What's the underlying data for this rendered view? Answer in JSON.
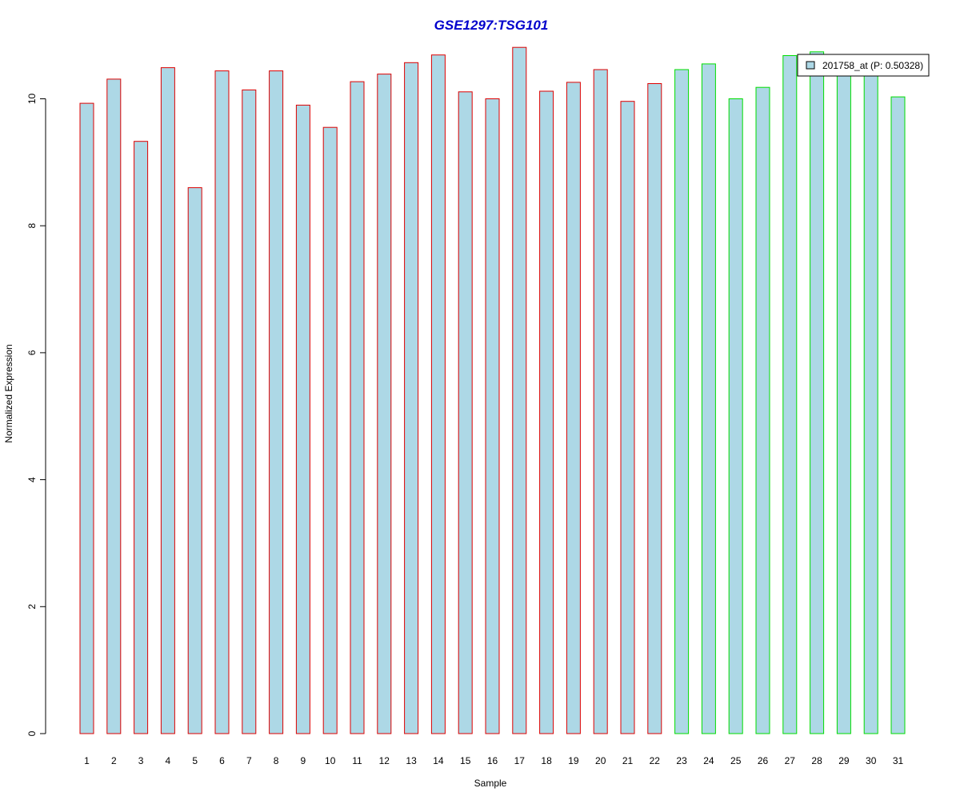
{
  "chart_data": {
    "type": "bar",
    "title": "GSE1297:TSG101",
    "xlabel": "Sample",
    "ylabel": "Normalized Expression",
    "categories": [
      "1",
      "2",
      "3",
      "4",
      "5",
      "6",
      "7",
      "8",
      "9",
      "10",
      "11",
      "12",
      "13",
      "14",
      "15",
      "16",
      "17",
      "18",
      "19",
      "20",
      "21",
      "22",
      "23",
      "24",
      "25",
      "26",
      "27",
      "28",
      "29",
      "30",
      "31"
    ],
    "series": [
      {
        "name": "201758_at (P: 0.50328)",
        "values": [
          9.93,
          10.31,
          9.33,
          10.49,
          8.6,
          10.44,
          10.14,
          10.44,
          9.9,
          9.55,
          10.27,
          10.39,
          10.57,
          10.69,
          10.11,
          10.0,
          10.81,
          10.12,
          10.26,
          10.46,
          9.96,
          10.24,
          10.46,
          10.55,
          10.0,
          10.18,
          10.68,
          10.74,
          10.47,
          10.52,
          10.03
        ]
      }
    ],
    "group_border_colors": [
      "#dd0000",
      "#dd0000",
      "#dd0000",
      "#dd0000",
      "#dd0000",
      "#dd0000",
      "#dd0000",
      "#dd0000",
      "#dd0000",
      "#dd0000",
      "#dd0000",
      "#dd0000",
      "#dd0000",
      "#dd0000",
      "#dd0000",
      "#dd0000",
      "#dd0000",
      "#dd0000",
      "#dd0000",
      "#dd0000",
      "#dd0000",
      "#dd0000",
      "#00dd00",
      "#00dd00",
      "#00dd00",
      "#00dd00",
      "#00dd00",
      "#00dd00",
      "#00dd00",
      "#00dd00",
      "#00dd00"
    ],
    "fill_color": "#add8e6",
    "title_color": "#0000cc",
    "ylim": [
      0,
      11
    ],
    "yticks": [
      0,
      2,
      4,
      6,
      8,
      10
    ],
    "grid": false,
    "legend_position": "top-right"
  }
}
